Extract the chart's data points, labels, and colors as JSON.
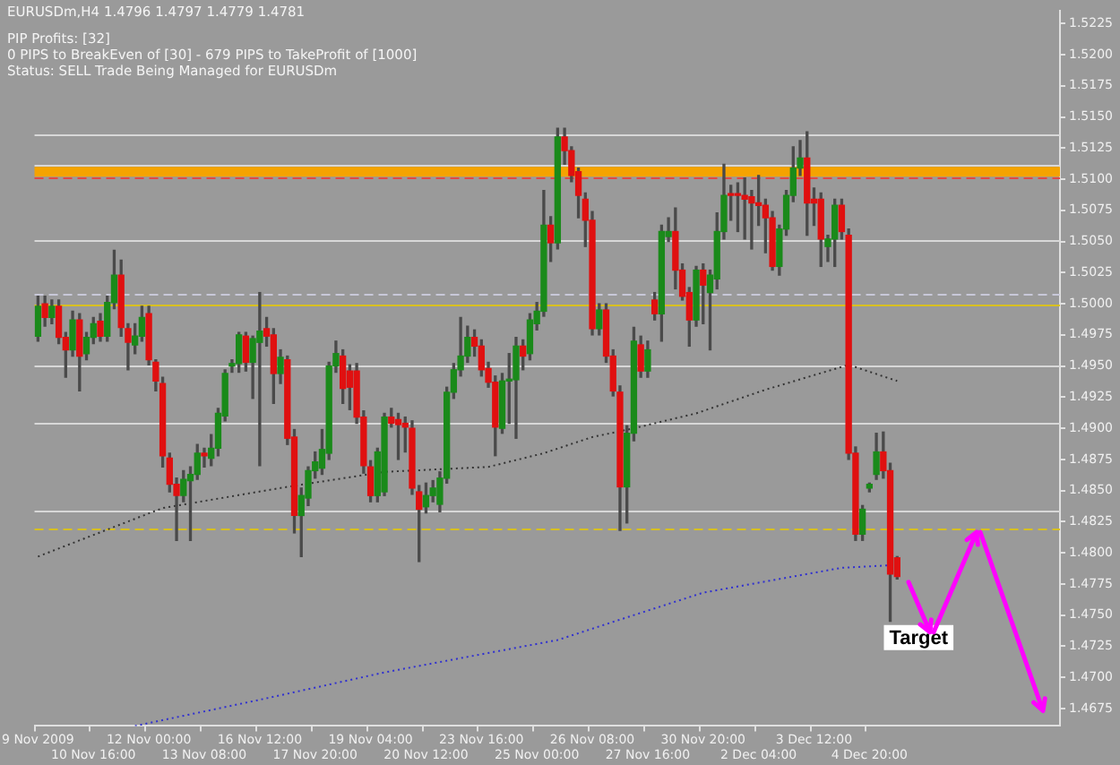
{
  "chart_data": {
    "type": "candlestick",
    "title": "EURUSDm,H4  1.4796 1.4797 1.4779 1.4781",
    "annotations": [
      "PIP Profits: [32]",
      "0 PIPS to BreakEven of [30] - 679 PIPS to TakeProfit of [1000]",
      "Status: SELL Trade Being Managed for EURUSDm",
      {
        "text": "Target",
        "y": 1.4732
      }
    ],
    "categories": [
      "9 Nov 2009",
      null,
      null,
      null,
      null,
      null,
      null,
      null,
      "10 Nov 16:00",
      null,
      null,
      null,
      null,
      null,
      null,
      null,
      "12 Nov 00:00",
      null,
      null,
      null,
      null,
      null,
      null,
      null,
      "13 Nov 08:00",
      null,
      null,
      null,
      null,
      null,
      null,
      null,
      "16 Nov 12:00",
      null,
      null,
      null,
      null,
      null,
      null,
      null,
      "17 Nov 20:00",
      null,
      null,
      null,
      null,
      null,
      null,
      null,
      "19 Nov 04:00",
      null,
      null,
      null,
      null,
      null,
      null,
      null,
      "20 Nov 12:00",
      null,
      null,
      null,
      null,
      null,
      null,
      null,
      "23 Nov 16:00",
      null,
      null,
      null,
      null,
      null,
      null,
      null,
      "25 Nov 00:00",
      null,
      null,
      null,
      null,
      null,
      null,
      null,
      "26 Nov 08:00",
      null,
      null,
      null,
      null,
      null,
      null,
      null,
      "27 Nov 16:00",
      null,
      null,
      null,
      null,
      null,
      null,
      null,
      "30 Nov 20:00",
      null,
      null,
      null,
      null,
      null,
      null,
      null,
      "2 Dec 04:00",
      null,
      null,
      null,
      null,
      null,
      null,
      null,
      "3 Dec 12:00",
      null,
      null,
      null,
      null,
      null,
      null,
      null,
      "4 Dec 20:00",
      null,
      null,
      null,
      null,
      null,
      null,
      null,
      null,
      null,
      null,
      null,
      null,
      null,
      null,
      null,
      null,
      null,
      null,
      null,
      null,
      null,
      null,
      null,
      null,
      null,
      null,
      null
    ],
    "ohlc": [
      [
        1.4974,
        1.5006,
        1.497,
        1.4998
      ],
      [
        1.5,
        1.5006,
        1.4982,
        1.4989
      ],
      [
        1.4989,
        1.5003,
        1.4984,
        1.4998
      ],
      [
        1.4998,
        1.5003,
        1.4968,
        1.4973
      ],
      [
        1.4973,
        1.4977,
        1.4941,
        1.4963
      ],
      [
        1.4963,
        1.4994,
        1.4958,
        1.4987
      ],
      [
        1.4987,
        1.4992,
        1.493,
        1.4958
      ],
      [
        1.496,
        1.4977,
        1.4955,
        1.4973
      ],
      [
        1.4973,
        1.4989,
        1.4968,
        1.4984
      ],
      [
        1.4986,
        1.4992,
        1.497,
        1.4974
      ],
      [
        1.4974,
        1.5006,
        1.497,
        1.5001
      ],
      [
        1.5001,
        1.5043,
        1.4996,
        1.5023
      ],
      [
        1.5023,
        1.5035,
        1.4974,
        1.4981
      ],
      [
        1.498,
        1.4984,
        1.4947,
        1.4969
      ],
      [
        1.4967,
        1.4984,
        1.496,
        1.4974
      ],
      [
        1.4974,
        1.4998,
        1.497,
        1.4989
      ],
      [
        1.4992,
        1.4998,
        1.4951,
        1.4955
      ],
      [
        1.4953,
        1.4955,
        1.493,
        1.4938
      ],
      [
        1.4936,
        1.4941,
        1.4869,
        1.4878
      ],
      [
        1.4876,
        1.488,
        1.4849,
        1.4855
      ],
      [
        1.4855,
        1.486,
        1.481,
        1.4846
      ],
      [
        1.4846,
        1.4866,
        1.4841,
        1.4859
      ],
      [
        1.4858,
        1.4869,
        1.481,
        1.4863
      ],
      [
        1.4863,
        1.4887,
        1.4859,
        1.488
      ],
      [
        1.488,
        1.4884,
        1.4869,
        1.4878
      ],
      [
        1.4876,
        1.4895,
        1.487,
        1.4884
      ],
      [
        1.4884,
        1.4916,
        1.4878,
        1.4912
      ],
      [
        1.491,
        1.4947,
        1.4906,
        1.4944
      ],
      [
        1.495,
        1.4955,
        1.4945,
        1.4952
      ],
      [
        1.4952,
        1.4977,
        1.4945,
        1.4975
      ],
      [
        1.4974,
        1.4977,
        1.4946,
        1.4953
      ],
      [
        1.4953,
        1.4974,
        1.4924,
        1.4972
      ],
      [
        1.4969,
        1.5009,
        1.487,
        1.4978
      ],
      [
        1.498,
        1.4989,
        1.4966,
        1.4974
      ],
      [
        1.4975,
        1.498,
        1.492,
        1.4944
      ],
      [
        1.4944,
        1.4963,
        1.4936,
        1.4957
      ],
      [
        1.4955,
        1.4958,
        1.4887,
        1.4892
      ],
      [
        1.4893,
        1.4899,
        1.4816,
        1.483
      ],
      [
        1.483,
        1.4852,
        1.4797,
        1.4846
      ],
      [
        1.4844,
        1.4869,
        1.4838,
        1.4866
      ],
      [
        1.4866,
        1.4881,
        1.486,
        1.4873
      ],
      [
        1.4868,
        1.4899,
        1.4863,
        1.4883
      ],
      [
        1.488,
        1.4953,
        1.4875,
        1.495
      ],
      [
        1.495,
        1.497,
        1.4945,
        1.496
      ],
      [
        1.4958,
        1.4963,
        1.492,
        1.4932
      ],
      [
        1.4946,
        1.4951,
        1.4915,
        1.4933
      ],
      [
        1.4946,
        1.4952,
        1.4904,
        1.4909
      ],
      [
        1.4909,
        1.4914,
        1.4864,
        1.487
      ],
      [
        1.4869,
        1.4874,
        1.4841,
        1.4846
      ],
      [
        1.4846,
        1.4884,
        1.4841,
        1.4881
      ],
      [
        1.4849,
        1.4912,
        1.4846,
        1.4909
      ],
      [
        1.4909,
        1.4916,
        1.4901,
        1.4904
      ],
      [
        1.4907,
        1.4912,
        1.4875,
        1.4903
      ],
      [
        1.4904,
        1.4909,
        1.4881,
        1.4901
      ],
      [
        1.49,
        1.4906,
        1.4847,
        1.4852
      ],
      [
        1.4849,
        1.4854,
        1.4793,
        1.4835
      ],
      [
        1.4837,
        1.4856,
        1.4832,
        1.4846
      ],
      [
        1.4846,
        1.4858,
        1.4841,
        1.4852
      ],
      [
        1.4839,
        1.4865,
        1.4833,
        1.486
      ],
      [
        1.486,
        1.4933,
        1.4856,
        1.4929
      ],
      [
        1.4929,
        1.4952,
        1.4924,
        1.4947
      ],
      [
        1.4947,
        1.4989,
        1.4942,
        1.4958
      ],
      [
        1.4958,
        1.4982,
        1.4953,
        1.4973
      ],
      [
        1.4973,
        1.4979,
        1.4958,
        1.4966
      ],
      [
        1.4966,
        1.4971,
        1.4942,
        1.4947
      ],
      [
        1.4948,
        1.4953,
        1.4933,
        1.4937
      ],
      [
        1.4937,
        1.4942,
        1.4878,
        1.4901
      ],
      [
        1.49,
        1.4944,
        1.4896,
        1.4938
      ],
      [
        1.4938,
        1.496,
        1.4904,
        1.4939
      ],
      [
        1.4939,
        1.4973,
        1.4892,
        1.4966
      ],
      [
        1.4966,
        1.4971,
        1.4947,
        1.4958
      ],
      [
        1.496,
        1.4992,
        1.4955,
        1.4987
      ],
      [
        1.4984,
        1.5001,
        1.4979,
        1.4994
      ],
      [
        1.4994,
        1.5091,
        1.499,
        1.5063
      ],
      [
        1.5063,
        1.507,
        1.5034,
        1.5049
      ],
      [
        1.5049,
        1.5141,
        1.5044,
        1.5134
      ],
      [
        1.5134,
        1.5141,
        1.5112,
        1.5123
      ],
      [
        1.5123,
        1.5126,
        1.5098,
        1.5103
      ],
      [
        1.5106,
        1.5109,
        1.5069,
        1.5087
      ],
      [
        1.5084,
        1.5089,
        1.5046,
        1.5067
      ],
      [
        1.5067,
        1.5074,
        1.4975,
        1.498
      ],
      [
        1.498,
        1.5,
        1.4975,
        1.4995
      ],
      [
        1.4995,
        1.5,
        1.4953,
        1.4958
      ],
      [
        1.4958,
        1.4963,
        1.4926,
        1.493
      ],
      [
        1.4929,
        1.4934,
        1.4818,
        1.4853
      ],
      [
        1.4853,
        1.4902,
        1.4824,
        1.4896
      ],
      [
        1.4896,
        1.4981,
        1.489,
        1.497
      ],
      [
        1.4967,
        1.4974,
        1.4941,
        1.4946
      ],
      [
        1.4946,
        1.497,
        1.4941,
        1.4963
      ],
      [
        1.5003,
        1.5009,
        1.4987,
        1.4992
      ],
      [
        1.4992,
        1.5063,
        1.497,
        1.5058
      ],
      [
        1.5054,
        1.5069,
        1.505,
        1.5058
      ],
      [
        1.5058,
        1.5077,
        1.5012,
        1.5027
      ],
      [
        1.5027,
        1.5032,
        1.5003,
        1.5006
      ],
      [
        1.5009,
        1.5013,
        1.4966,
        1.4987
      ],
      [
        1.4987,
        1.503,
        1.4982,
        1.5027
      ],
      [
        1.5027,
        1.5032,
        1.4984,
        1.5015
      ],
      [
        1.5009,
        1.5027,
        1.4963,
        1.5023
      ],
      [
        1.502,
        1.5073,
        1.5012,
        1.5058
      ],
      [
        1.5058,
        1.5112,
        1.5052,
        1.5087
      ],
      [
        1.5088,
        1.5095,
        1.5067,
        1.5087
      ],
      [
        1.5088,
        1.5097,
        1.5058,
        1.5087
      ],
      [
        1.5087,
        1.5101,
        1.5052,
        1.5084
      ],
      [
        1.5086,
        1.5091,
        1.5044,
        1.5081
      ],
      [
        1.5081,
        1.5103,
        1.5063,
        1.5079
      ],
      [
        1.5079,
        1.5084,
        1.5041,
        1.5069
      ],
      [
        1.5069,
        1.5074,
        1.5027,
        1.503
      ],
      [
        1.503,
        1.5063,
        1.5023,
        1.506
      ],
      [
        1.506,
        1.5091,
        1.5055,
        1.5087
      ],
      [
        1.5087,
        1.5126,
        1.5082,
        1.5109
      ],
      [
        1.5109,
        1.5131,
        1.5103,
        1.5117
      ],
      [
        1.5117,
        1.5138,
        1.5055,
        1.5081
      ],
      [
        1.5084,
        1.5093,
        1.5063,
        1.5081
      ],
      [
        1.5084,
        1.5089,
        1.503,
        1.5052
      ],
      [
        1.5046,
        1.5055,
        1.5034,
        1.5052
      ],
      [
        1.5052,
        1.5084,
        1.503,
        1.5079
      ],
      [
        1.5079,
        1.5084,
        1.5052,
        1.5058
      ],
      [
        1.5055,
        1.506,
        1.4875,
        1.488
      ],
      [
        1.488,
        1.4885,
        1.481,
        1.4815
      ],
      [
        1.4815,
        1.4838,
        1.481,
        1.4835
      ],
      [
        1.4852,
        1.4856,
        1.4849,
        1.4855
      ],
      [
        1.4863,
        1.4896,
        1.4859,
        1.4881
      ],
      [
        1.4881,
        1.4897,
        1.486,
        1.4866
      ],
      [
        1.4866,
        1.4872,
        1.4745,
        1.4783
      ],
      [
        1.4796,
        1.4797,
        1.4779,
        1.4781
      ],
      null,
      null,
      null,
      null,
      null,
      null,
      null,
      null,
      null,
      null,
      null,
      null,
      null,
      null,
      null,
      null,
      null,
      null,
      null,
      null,
      null,
      null,
      null
    ],
    "colors": [
      "#1a8a1a",
      "#e01010",
      "#1a8a1a",
      "#e01010",
      "#e01010",
      "#1a8a1a",
      "#e01010",
      "#1a8a1a",
      "#1a8a1a",
      "#e01010",
      "#1a8a1a",
      "#1a8a1a",
      "#e01010",
      "#e01010",
      "#1a8a1a",
      "#1a8a1a",
      "#e01010",
      "#e01010",
      "#e01010",
      "#e01010",
      "#e01010",
      "#1a8a1a",
      "#1a8a1a",
      "#1a8a1a",
      "#e01010",
      "#1a8a1a",
      "#1a8a1a",
      "#1a8a1a",
      "#1a8a1a",
      "#1a8a1a",
      "#e01010",
      "#1a8a1a",
      "#1a8a1a",
      "#e01010",
      "#e01010",
      "#1a8a1a",
      "#e01010",
      "#e01010",
      "#1a8a1a",
      "#1a8a1a",
      "#1a8a1a",
      "#1a8a1a",
      "#1a8a1a",
      "#1a8a1a",
      "#e01010",
      "#e01010",
      "#e01010",
      "#e01010",
      "#e01010",
      "#1a8a1a",
      "#1a8a1a",
      "#e01010",
      "#e01010",
      "#e01010",
      "#e01010",
      "#e01010",
      "#1a8a1a",
      "#1a8a1a",
      "#1a8a1a",
      "#1a8a1a",
      "#1a8a1a",
      "#1a8a1a",
      "#1a8a1a",
      "#e01010",
      "#e01010",
      "#e01010",
      "#e01010",
      "#1a8a1a",
      "#1a8a1a",
      "#1a8a1a",
      "#e01010",
      "#1a8a1a",
      "#1a8a1a",
      "#1a8a1a",
      "#e01010",
      "#1a8a1a",
      "#e01010",
      "#e01010",
      "#e01010",
      "#e01010",
      "#e01010",
      "#1a8a1a",
      "#e01010",
      "#e01010",
      "#e01010",
      "#1a8a1a",
      "#1a8a1a",
      "#e01010",
      "#1a8a1a",
      "#e01010",
      "#1a8a1a",
      "#1a8a1a",
      "#e01010",
      "#e01010",
      "#e01010",
      "#1a8a1a",
      "#e01010",
      "#1a8a1a",
      "#1a8a1a",
      "#1a8a1a",
      "#e01010",
      "#e01010",
      "#e01010",
      "#e01010",
      "#e01010",
      "#e01010",
      "#e01010",
      "#1a8a1a",
      "#1a8a1a",
      "#1a8a1a",
      "#1a8a1a",
      "#e01010",
      "#e01010",
      "#e01010",
      "#1a8a1a",
      "#1a8a1a",
      "#e01010",
      "#e01010",
      "#e01010",
      "#1a8a1a",
      "#1a8a1a",
      "#1a8a1a",
      "#e01010",
      "#e01010",
      "#e01010",
      null,
      null,
      null,
      null,
      null,
      null,
      null,
      null,
      null,
      null,
      null,
      null,
      null,
      null,
      null,
      null,
      null,
      null,
      null,
      null,
      null,
      null,
      null
    ],
    "series": [
      {
        "type": "line",
        "color": "#333333",
        "line_style": "dotted",
        "values": [
          1.4797,
          null,
          null,
          null,
          null,
          null,
          null,
          null,
          null,
          null,
          null,
          null,
          null,
          null,
          null,
          null,
          null,
          null,
          1.4836,
          null,
          null,
          null,
          null,
          null,
          null,
          null,
          null,
          null,
          null,
          null,
          null,
          null,
          null,
          null,
          null,
          null,
          1.4853,
          null,
          null,
          null,
          null,
          null,
          null,
          null,
          null,
          null,
          null,
          null,
          null,
          null,
          1.4865,
          null,
          null,
          null,
          null,
          null,
          null,
          null,
          null,
          null,
          null,
          null,
          null,
          null,
          null,
          1.4869,
          null,
          null,
          null,
          null,
          null,
          null,
          null,
          1.488,
          null,
          null,
          null,
          null,
          null,
          null,
          1.4893,
          null,
          null,
          null,
          null,
          null,
          1.49,
          null,
          null,
          null,
          null,
          null,
          null,
          null,
          null,
          1.4912,
          null,
          null,
          null,
          null,
          null,
          null,
          null,
          null,
          null,
          1.4931,
          null,
          null,
          null,
          null,
          null,
          null,
          null,
          null,
          null,
          null,
          null,
          1.4951,
          null,
          null,
          null,
          null,
          null,
          null,
          1.4938,
          null,
          null,
          null,
          null,
          null,
          null,
          null,
          null,
          null,
          null,
          null,
          null,
          null,
          null,
          null,
          null,
          null,
          null,
          null,
          null,
          null,
          null,
          null
        ]
      },
      {
        "type": "line",
        "color": "#3030d0",
        "line_style": "dotted",
        "values": [
          null,
          null,
          null,
          null,
          null,
          null,
          null,
          null,
          null,
          null,
          null,
          null,
          null,
          null,
          1.4661,
          null,
          null,
          null,
          null,
          null,
          null,
          null,
          null,
          null,
          null,
          null,
          null,
          null,
          null,
          null,
          null,
          null,
          1.4682,
          null,
          null,
          null,
          null,
          null,
          null,
          null,
          null,
          null,
          null,
          null,
          null,
          null,
          null,
          null,
          null,
          null,
          1.4704,
          null,
          null,
          null,
          null,
          null,
          null,
          null,
          null,
          null,
          null,
          null,
          null,
          null,
          null,
          null,
          null,
          null,
          null,
          null,
          null,
          null,
          null,
          null,
          null,
          1.473,
          null,
          null,
          null,
          null,
          null,
          null,
          null,
          null,
          null,
          null,
          1.475,
          null,
          null,
          null,
          null,
          null,
          null,
          null,
          null,
          null,
          1.4768,
          null,
          null,
          null,
          null,
          null,
          null,
          null,
          null,
          null,
          null,
          null,
          1.478,
          null,
          null,
          null,
          null,
          null,
          null,
          null,
          1.4788,
          null,
          null,
          null,
          null,
          null,
          null,
          1.479,
          null,
          null,
          null,
          null,
          null,
          null,
          null,
          null,
          null,
          null,
          null,
          null,
          null,
          null,
          null,
          null,
          null,
          null,
          null,
          null,
          null,
          null,
          null,
          null
        ]
      }
    ],
    "ref_lines": [
      {
        "axis": "y",
        "value": 1.5136,
        "color": "#d8d8d8"
      },
      {
        "axis": "y",
        "value": 1.5112,
        "color": "#d8d8d8"
      },
      {
        "axis": "y",
        "value": 1.5101,
        "color": "#e04848",
        "line_style": "dashed"
      },
      {
        "axis": "y",
        "value": 1.5051,
        "color": "#d8d8d8"
      },
      {
        "axis": "y",
        "value": 1.5008,
        "color": "#c8c8d8",
        "line_style": "dashed"
      },
      {
        "axis": "y",
        "value": 1.5,
        "color": "#d8c020"
      },
      {
        "axis": "y",
        "value": 1.495,
        "color": "#d8d8d8"
      },
      {
        "axis": "y",
        "value": 1.4904,
        "color": "#d8d8d8"
      },
      {
        "axis": "y",
        "value": 1.4834,
        "color": "#d8d8d8"
      },
      {
        "axis": "y",
        "value": 1.4819,
        "color": "#d8c020",
        "line_style": "dashed"
      }
    ],
    "bands": [
      {
        "axis": "y",
        "from": 1.5102,
        "to": 1.511,
        "color": "#f5a300"
      }
    ],
    "ylim": [
      1.4661,
      1.5235
    ],
    "yticks": [
      1.4675,
      {
        "value": 1.47,
        "label": "1.4700"
      },
      1.4725,
      {
        "value": 1.475,
        "label": "1.4750"
      },
      1.4775,
      {
        "value": 1.48,
        "label": "1.4800"
      },
      1.4825,
      {
        "value": 1.485,
        "label": "1.4850"
      },
      1.4875,
      {
        "value": 1.49,
        "label": "1.4900"
      },
      1.4925,
      {
        "value": 1.495,
        "label": "1.4950"
      },
      1.4975,
      {
        "value": 1.5,
        "label": "1.5000"
      },
      1.5025,
      {
        "value": 1.505,
        "label": "1.5050"
      },
      1.5075,
      {
        "value": 1.51,
        "label": "1.5100"
      },
      1.5125,
      {
        "value": 1.515,
        "label": "1.5150"
      },
      1.5175,
      {
        "value": 1.52,
        "label": "1.5200"
      },
      1.5225
    ],
    "grid": false,
    "legend": false
  }
}
